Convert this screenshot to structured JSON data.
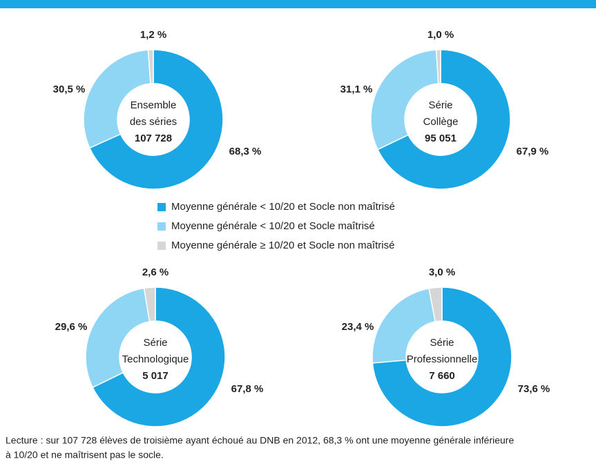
{
  "chart_data": [
    {
      "type": "pie",
      "center_lines": [
        "Ensemble",
        "des séries"
      ],
      "total": "107 728",
      "values": [
        68.3,
        30.5,
        1.2
      ],
      "value_labels": [
        "68,3 %",
        "30,5 %",
        "1,2 %"
      ]
    },
    {
      "type": "pie",
      "center_lines": [
        "Série",
        "Collège"
      ],
      "total": "95 051",
      "values": [
        67.9,
        31.1,
        1.0
      ],
      "value_labels": [
        "67,9 %",
        "31,1 %",
        "1,0 %"
      ]
    },
    {
      "type": "pie",
      "center_lines": [
        "Série",
        "Technologique"
      ],
      "total": "5 017",
      "values": [
        67.8,
        29.6,
        2.6
      ],
      "value_labels": [
        "67,8 %",
        "29,6 %",
        "2,6 %"
      ]
    },
    {
      "type": "pie",
      "center_lines": [
        "Série",
        "Professionnelle"
      ],
      "total": "7 660",
      "values": [
        73.6,
        23.4,
        3.0
      ],
      "value_labels": [
        "73,6 %",
        "23,4 %",
        "3,0 %"
      ]
    }
  ],
  "legend": [
    {
      "name": "Moyenne générale < 10/20 et Socle non maîtrisé",
      "color": "#1aa7e4"
    },
    {
      "name": "Moyenne générale < 10/20 et Socle maîtrisé",
      "color": "#8fd5f4"
    },
    {
      "name": "Moyenne générale ≥ 10/20 et Socle non maîtrisé",
      "color": "#d6d6d6"
    }
  ],
  "note": [
    "Lecture : sur 107 728 élèves de troisième ayant échoué au DNB en 2012, 68,3 % ont une moyenne générale inférieure",
    "à 10/20 et ne maîtrisent pas le socle."
  ]
}
